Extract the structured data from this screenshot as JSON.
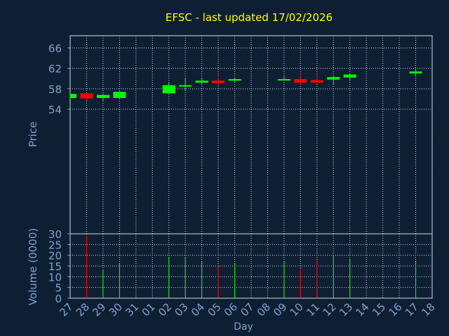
{
  "chart_data": {
    "type": "candlestick",
    "title": "EFSC - last updated 17/02/2026",
    "price_panel": {
      "ylabel": "Price",
      "ylim": [
        29.6,
        68.4
      ],
      "yticks": [
        54,
        58,
        62,
        66
      ],
      "yticks_label": [
        "54",
        "58",
        "62",
        "66"
      ]
    },
    "volume_panel": {
      "ylabel": "Volume (0000)",
      "ylim": [
        0,
        30
      ],
      "yticks": [
        0,
        5,
        10,
        15,
        20,
        25,
        30
      ],
      "yticks_label": [
        "0",
        "5",
        "10",
        "15",
        "20",
        "25",
        "30"
      ]
    },
    "xlabel": "Day",
    "x_ticks": [
      "27",
      "28",
      "29",
      "30",
      "31",
      "01",
      "02",
      "03",
      "04",
      "05",
      "06",
      "07",
      "08",
      "09",
      "10",
      "11",
      "12",
      "13",
      "14",
      "15",
      "16",
      "17",
      "18"
    ],
    "grid": true,
    "colors": {
      "background": "#0f1f33",
      "up": "#00ff00",
      "down": "#ff0000",
      "title": "#ffff00",
      "axis_text": "#7fa2cc",
      "grid": "#c8d2dc"
    },
    "candles": [
      {
        "day": "27",
        "open": 56.2,
        "high": 57.0,
        "low": 56.1,
        "close": 57.0,
        "volume": 0
      },
      {
        "day": "28",
        "open": 57.1,
        "high": 57.2,
        "low": 55.7,
        "close": 56.1,
        "volume": 29
      },
      {
        "day": "29",
        "open": 56.2,
        "high": 57.0,
        "low": 55.6,
        "close": 56.8,
        "volume": 13
      },
      {
        "day": "30",
        "open": 56.2,
        "high": 57.5,
        "low": 56.0,
        "close": 57.4,
        "volume": 16
      },
      {
        "day": "02",
        "open": 57.1,
        "high": 59.2,
        "low": 57.0,
        "close": 58.7,
        "volume": 19
      },
      {
        "day": "03",
        "open": 58.6,
        "high": 60.1,
        "low": 57.6,
        "close": 58.7,
        "volume": 19
      },
      {
        "day": "04",
        "open": 59.2,
        "high": 60.2,
        "low": 59.0,
        "close": 59.6,
        "volume": 17
      },
      {
        "day": "05",
        "open": 59.6,
        "high": 60.2,
        "low": 58.5,
        "close": 59.1,
        "volume": 15
      },
      {
        "day": "06",
        "open": 59.6,
        "high": 60.1,
        "low": 59.4,
        "close": 59.9,
        "volume": 16
      },
      {
        "day": "09",
        "open": 59.7,
        "high": 60.4,
        "low": 59.6,
        "close": 59.9,
        "volume": 17
      },
      {
        "day": "10",
        "open": 59.9,
        "high": 60.6,
        "low": 58.7,
        "close": 59.2,
        "volume": 14
      },
      {
        "day": "11",
        "open": 59.7,
        "high": 60.2,
        "low": 58.9,
        "close": 59.2,
        "volume": 18
      },
      {
        "day": "12",
        "open": 59.8,
        "high": 60.6,
        "low": 58.9,
        "close": 60.3,
        "volume": 20
      },
      {
        "day": "13",
        "open": 60.2,
        "high": 61.0,
        "low": 59.6,
        "close": 60.8,
        "volume": 18
      },
      {
        "day": "17",
        "open": 61.0,
        "high": 61.7,
        "low": 60.4,
        "close": 61.4,
        "volume": 17
      }
    ]
  }
}
